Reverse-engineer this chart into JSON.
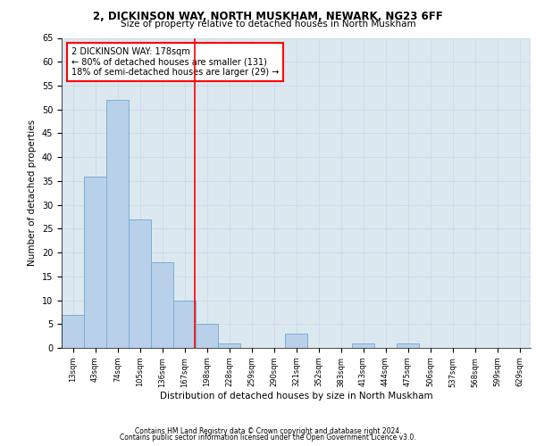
{
  "title1": "2, DICKINSON WAY, NORTH MUSKHAM, NEWARK, NG23 6FF",
  "title2": "Size of property relative to detached houses in North Muskham",
  "xlabel": "Distribution of detached houses by size in North Muskham",
  "ylabel": "Number of detached properties",
  "bar_labels": [
    "13sqm",
    "43sqm",
    "74sqm",
    "105sqm",
    "136sqm",
    "167sqm",
    "198sqm",
    "228sqm",
    "259sqm",
    "290sqm",
    "321sqm",
    "352sqm",
    "383sqm",
    "413sqm",
    "444sqm",
    "475sqm",
    "506sqm",
    "537sqm",
    "568sqm",
    "599sqm",
    "629sqm"
  ],
  "bar_values": [
    7,
    36,
    52,
    27,
    18,
    10,
    5,
    1,
    0,
    0,
    3,
    0,
    0,
    1,
    0,
    1,
    0,
    0,
    0,
    0,
    0
  ],
  "bar_color": "#b8d0ea",
  "bar_edge_color": "#7aafd4",
  "vline_x": 5.45,
  "vline_color": "red",
  "annotation_text": "2 DICKINSON WAY: 178sqm\n← 80% of detached houses are smaller (131)\n18% of semi-detached houses are larger (29) →",
  "annotation_box_color": "white",
  "annotation_box_edge": "red",
  "ylim": [
    0,
    65
  ],
  "yticks": [
    0,
    5,
    10,
    15,
    20,
    25,
    30,
    35,
    40,
    45,
    50,
    55,
    60,
    65
  ],
  "grid_color": "#d0d8e8",
  "bg_color": "#dce8f0",
  "footer1": "Contains HM Land Registry data © Crown copyright and database right 2024.",
  "footer2": "Contains public sector information licensed under the Open Government Licence v3.0."
}
